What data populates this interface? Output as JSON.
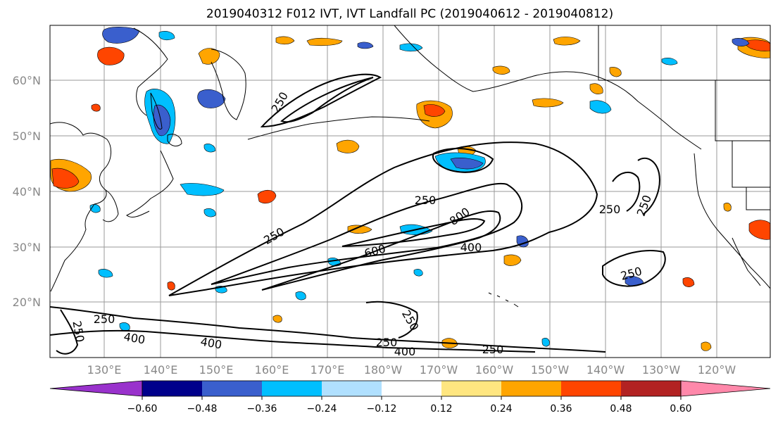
{
  "title": "2019040312 F012 IVT, IVT Landfall PC (2019040612 - 2019040812)",
  "lat_labels": [
    "60°N",
    "50°N",
    "40°N",
    "30°N",
    "20°N"
  ],
  "lon_labels": [
    "130°E",
    "140°E",
    "150°E",
    "160°E",
    "170°E",
    "180°W",
    "170°W",
    "160°W",
    "150°W",
    "140°W",
    "130°W",
    "120°W"
  ],
  "contour_labels": [
    "250",
    "800",
    "600",
    "400",
    "250",
    "250",
    "250",
    "250",
    "250",
    "250",
    "400",
    "400",
    "250",
    "400",
    "250",
    "250",
    "250"
  ],
  "colorbar": {
    "tick_labels": [
      "−0.60",
      "−0.48",
      "−0.36",
      "−0.24",
      "−0.12",
      "0.12",
      "0.24",
      "0.36",
      "0.48",
      "0.60"
    ],
    "colors": [
      "#9932cc",
      "#00008b",
      "#3a5fcd",
      "#00bfff",
      "#b0e0ff",
      "#ffffff",
      "#ffe680",
      "#ffa500",
      "#ff4500",
      "#b22222",
      "#ff88aa"
    ]
  }
}
